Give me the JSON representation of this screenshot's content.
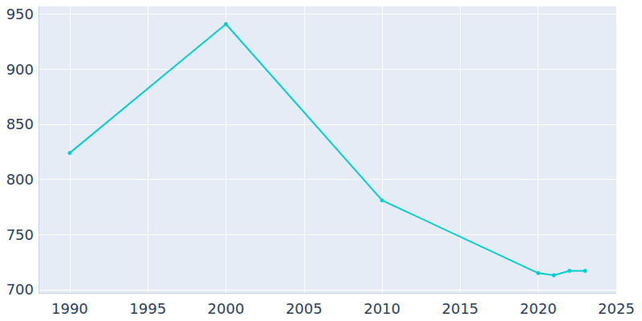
{
  "chart_data": {
    "type": "line",
    "x": [
      1990,
      2000,
      2010,
      2020,
      2021,
      2022,
      2023
    ],
    "values": [
      824,
      941,
      781,
      715,
      713,
      717,
      717
    ],
    "color": "#00ced1",
    "marker": "circle",
    "line_style": "solid",
    "xlim": [
      1988,
      2025
    ],
    "xticks": [
      1990,
      1995,
      2000,
      2005,
      2010,
      2015,
      2020,
      2025
    ],
    "ylim": [
      697,
      957
    ],
    "yticks": [
      700,
      750,
      800,
      850,
      900,
      950
    ],
    "grid": true
  }
}
